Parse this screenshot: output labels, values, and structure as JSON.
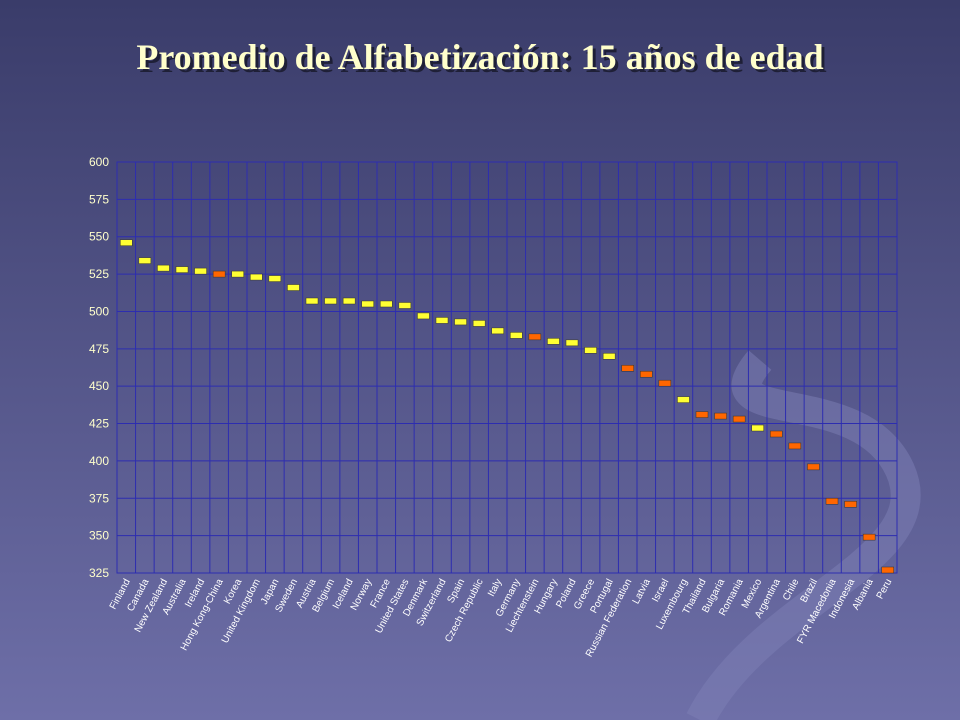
{
  "chart_data": {
    "type": "marker",
    "title": "Promedio de Alfabetización: 15 años de edad",
    "categories": [
      "Finland",
      "Canada",
      "New Zealand",
      "Australia",
      "Ireland",
      "Hong Kong-China",
      "Korea",
      "United Kingdom",
      "Japan",
      "Sweden",
      "Austria",
      "Belgium",
      "Iceland",
      "Norway",
      "France",
      "United States",
      "Denmark",
      "Switzerland",
      "Spain",
      "Czech Republic",
      "Italy",
      "Germany",
      "Liechtenstein",
      "Hungary",
      "Poland",
      "Greece",
      "Portugal",
      "Russian Federation",
      "Latvia",
      "Israel",
      "Luxembourg",
      "Thailand",
      "Bulgaria",
      "Romania",
      "Mexico",
      "Argentina",
      "Chile",
      "Brazil",
      "FYR Macedonia",
      "Indonesia",
      "Albania",
      "Peru"
    ],
    "values": [
      546,
      534,
      529,
      528,
      527,
      525,
      525,
      523,
      522,
      516,
      507,
      507,
      507,
      505,
      505,
      504,
      497,
      494,
      493,
      492,
      487,
      484,
      483,
      480,
      479,
      474,
      470,
      462,
      458,
      452,
      441,
      431,
      430,
      428,
      422,
      418,
      410,
      396,
      373,
      371,
      349,
      327
    ],
    "colors": [
      "#ffff33",
      "#ffff33",
      "#ffff33",
      "#ffff33",
      "#ffff33",
      "#ff6600",
      "#ffff33",
      "#ffff33",
      "#ffff33",
      "#ffff33",
      "#ffff33",
      "#ffff33",
      "#ffff33",
      "#ffff33",
      "#ffff33",
      "#ffff33",
      "#ffff33",
      "#ffff33",
      "#ffff33",
      "#ffff33",
      "#ffff33",
      "#ffff33",
      "#ff6600",
      "#ffff33",
      "#ffff33",
      "#ffff33",
      "#ffff33",
      "#ff6600",
      "#ff6600",
      "#ff6600",
      "#ffff33",
      "#ff6600",
      "#ff6600",
      "#ff6600",
      "#ffff33",
      "#ff6600",
      "#ff6600",
      "#ff6600",
      "#ff6600",
      "#ff6600",
      "#ff6600",
      "#ff6600"
    ],
    "ylim": [
      325,
      600
    ],
    "yticks": [
      325,
      350,
      375,
      400,
      425,
      450,
      475,
      500,
      525,
      550,
      575,
      600
    ],
    "grid": true
  }
}
